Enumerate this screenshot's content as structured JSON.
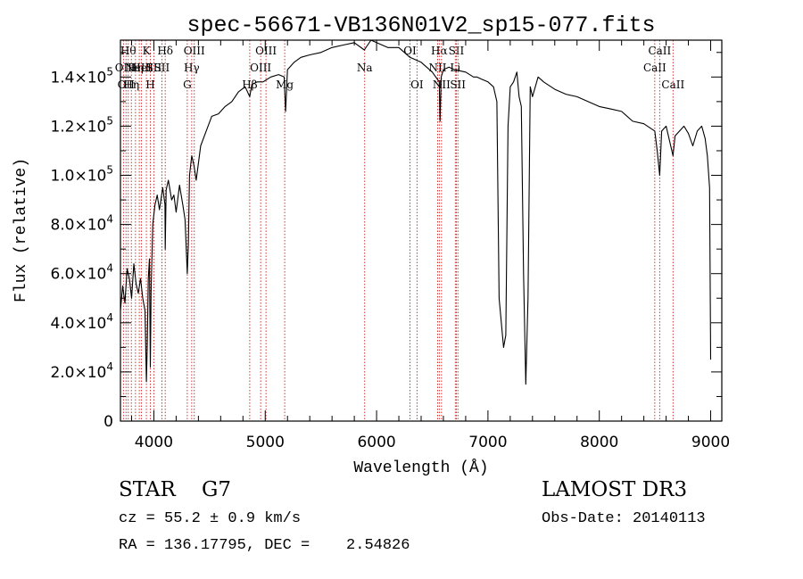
{
  "chart_data": {
    "type": "line",
    "title": "spec-56671-VB136N01V2_sp15-077.fits",
    "xlabel": "Wavelength (Å)",
    "ylabel": "Flux (relative)",
    "xlim": [
      3700,
      9100
    ],
    "ylim": [
      0,
      155000
    ],
    "xticks": [
      {
        "value": 4000,
        "label": "4000"
      },
      {
        "value": 5000,
        "label": "5000"
      },
      {
        "value": 6000,
        "label": "6000"
      },
      {
        "value": 7000,
        "label": "7000"
      },
      {
        "value": 8000,
        "label": "8000"
      },
      {
        "value": 9000,
        "label": "9000"
      }
    ],
    "yticks": [
      {
        "value": 0,
        "mant": "0",
        "exp": ""
      },
      {
        "value": 20000,
        "mant": "2.0×10",
        "exp": "4"
      },
      {
        "value": 40000,
        "mant": "4.0×10",
        "exp": "4"
      },
      {
        "value": 60000,
        "mant": "6.0×10",
        "exp": "4"
      },
      {
        "value": 80000,
        "mant": "8.0×10",
        "exp": "4"
      },
      {
        "value": 100000,
        "mant": "1.0×10",
        "exp": "5"
      },
      {
        "value": 120000,
        "mant": "1.2×10",
        "exp": "5"
      },
      {
        "value": 140000,
        "mant": "1.4×10",
        "exp": "5"
      }
    ],
    "series": [
      {
        "name": "spectrum",
        "x": [
          3700,
          3720,
          3740,
          3760,
          3780,
          3800,
          3820,
          3840,
          3860,
          3880,
          3900,
          3920,
          3933,
          3940,
          3950,
          3960,
          3968,
          3975,
          3990,
          4010,
          4030,
          4050,
          4080,
          4100,
          4102,
          4110,
          4130,
          4160,
          4180,
          4200,
          4230,
          4260,
          4280,
          4300,
          4310,
          4320,
          4340,
          4360,
          4380,
          4420,
          4470,
          4520,
          4580,
          4640,
          4700,
          4760,
          4820,
          4861,
          4880,
          4930,
          4980,
          5050,
          5120,
          5170,
          5183,
          5200,
          5260,
          5320,
          5400,
          5500,
          5600,
          5700,
          5800,
          5890,
          5950,
          6000,
          6100,
          6200,
          6300,
          6400,
          6500,
          6563,
          6570,
          6580,
          6600,
          6650,
          6700,
          6800,
          6870,
          6900,
          6950,
          7000,
          7050,
          7080,
          7100,
          7120,
          7140,
          7160,
          7180,
          7200,
          7230,
          7260,
          7280,
          7300,
          7320,
          7340,
          7360,
          7380,
          7400,
          7450,
          7500,
          7600,
          7700,
          7800,
          7900,
          8000,
          8100,
          8200,
          8300,
          8400,
          8498,
          8520,
          8542,
          8560,
          8600,
          8662,
          8680,
          8720,
          8760,
          8800,
          8840,
          8880,
          8920,
          8950,
          8970,
          8990,
          9000
        ],
        "y": [
          45000,
          55000,
          48000,
          62000,
          58000,
          50000,
          64000,
          56000,
          52000,
          58000,
          50000,
          45000,
          16000,
          30000,
          58000,
          66000,
          22000,
          52000,
          80000,
          88000,
          92000,
          86000,
          95000,
          88000,
          70000,
          94000,
          98000,
          90000,
          92000,
          85000,
          96000,
          88000,
          82000,
          60000,
          72000,
          100000,
          108000,
          104000,
          98000,
          112000,
          118000,
          124000,
          125000,
          128000,
          130000,
          134000,
          136000,
          132000,
          137000,
          138000,
          138000,
          140000,
          141000,
          140000,
          126000,
          143000,
          146000,
          148000,
          149000,
          150000,
          152000,
          153000,
          154000,
          151000,
          155000,
          154000,
          152000,
          152000,
          148000,
          146000,
          142000,
          138000,
          122000,
          140000,
          143000,
          144000,
          143000,
          142000,
          140000,
          140000,
          139000,
          138000,
          136000,
          130000,
          50000,
          40000,
          30000,
          35000,
          120000,
          136000,
          138000,
          142000,
          132000,
          128000,
          60000,
          15000,
          50000,
          136000,
          132000,
          140000,
          138000,
          135000,
          133000,
          132000,
          130000,
          128000,
          127000,
          126000,
          122000,
          121000,
          118000,
          110000,
          100000,
          118000,
          120000,
          108000,
          116000,
          118000,
          120000,
          117000,
          112000,
          118000,
          120000,
          115000,
          108000,
          95000,
          25000
        ]
      }
    ],
    "lines": [
      {
        "x": 3727,
        "labels": [
          "OII"
        ],
        "row": 1
      },
      {
        "x": 3750,
        "labels": [
          "OII"
        ],
        "row": 2
      },
      {
        "x": 3770,
        "labels": [
          "Hθ"
        ],
        "row": 0
      },
      {
        "x": 3798,
        "labels": [
          "Hη"
        ],
        "row": 2
      },
      {
        "x": 3835,
        "labels": [
          "Hη"
        ],
        "row": 1
      },
      {
        "x": 3869,
        "labels": [
          "NeIII"
        ],
        "row": 1
      },
      {
        "x": 3889,
        "labels": [
          "HeI"
        ],
        "row": 1
      },
      {
        "x": 3933,
        "labels": [
          "K"
        ],
        "row": 0
      },
      {
        "x": 3968,
        "labels": [
          "H"
        ],
        "row": 2
      },
      {
        "x": 4000,
        "labels": [
          "SII"
        ],
        "row": 1
      },
      {
        "x": 4072,
        "labels": [
          "SII"
        ],
        "row": 1
      },
      {
        "x": 4102,
        "labels": [
          "Hδ"
        ],
        "row": 0
      },
      {
        "x": 4300,
        "labels": [
          "G"
        ],
        "row": 2
      },
      {
        "x": 4340,
        "labels": [
          "Hγ"
        ],
        "row": 1
      },
      {
        "x": 4363,
        "labels": [
          "OIII"
        ],
        "row": 0
      },
      {
        "x": 4861,
        "labels": [
          "Hβ"
        ],
        "row": 2
      },
      {
        "x": 4959,
        "labels": [
          "OIII"
        ],
        "row": 1
      },
      {
        "x": 5007,
        "labels": [
          "OIII"
        ],
        "row": 0
      },
      {
        "x": 5175,
        "labels": [
          "Mg"
        ],
        "row": 2
      },
      {
        "x": 5893,
        "labels": [
          "Na"
        ],
        "row": 1
      },
      {
        "x": 6300,
        "labels": [
          "OI"
        ],
        "row": 0
      },
      {
        "x": 6363,
        "labels": [
          "OI"
        ],
        "row": 2
      },
      {
        "x": 6548,
        "labels": [
          "NII"
        ],
        "row": 1
      },
      {
        "x": 6563,
        "labels": [
          "Hα"
        ],
        "row": 0
      },
      {
        "x": 6583,
        "labels": [
          "NII"
        ],
        "row": 2
      },
      {
        "x": 6707,
        "labels": [
          "Li"
        ],
        "row": 1
      },
      {
        "x": 6716,
        "labels": [
          "SII"
        ],
        "row": 0
      },
      {
        "x": 6730,
        "labels": [
          "SII"
        ],
        "row": 2
      },
      {
        "x": 8498,
        "labels": [
          "CaII"
        ],
        "row": 1
      },
      {
        "x": 8542,
        "labels": [
          "CaII"
        ],
        "row": 0
      },
      {
        "x": 8662,
        "labels": [
          "CaII"
        ],
        "row": 2
      }
    ]
  },
  "footer": {
    "object_class": "STAR    G7",
    "cz": "cz = 55.2 ± 0.9 km/s",
    "radec": "RA = 136.17795, DEC =    2.54826",
    "survey": "LAMOST DR3",
    "obs_date": "Obs-Date: 20140113"
  }
}
